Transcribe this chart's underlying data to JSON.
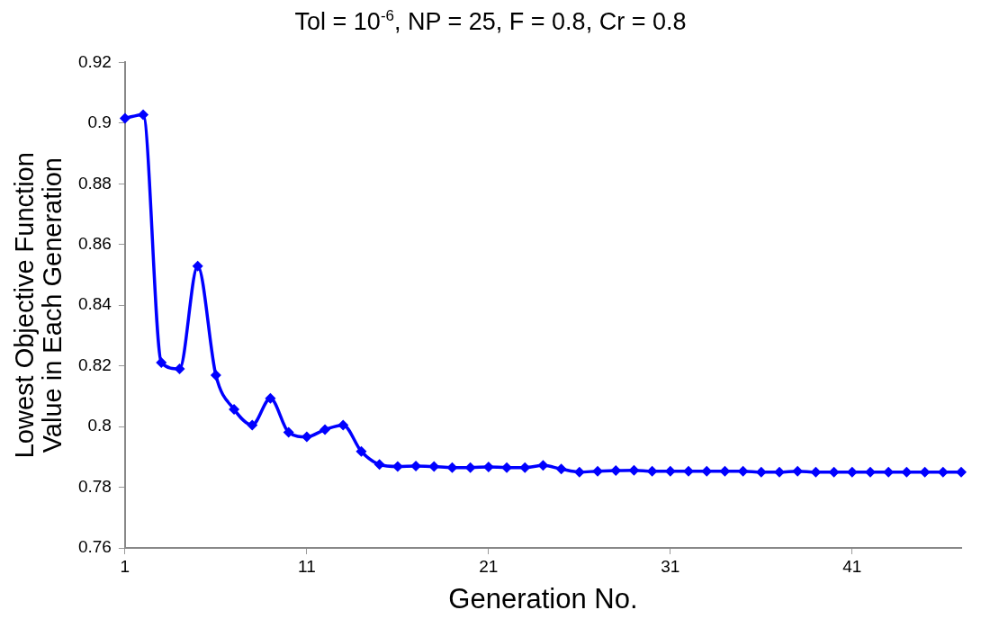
{
  "chart_data": {
    "type": "line",
    "title": "Tol = 10$^{-6}$, NP = 25, F = 0.8, Cr = 0.8",
    "xlabel": "Generation No.",
    "ylabel": "Lowest Objective Function Value in Each Generation",
    "x": [
      1,
      2,
      3,
      4,
      5,
      6,
      7,
      8,
      9,
      10,
      11,
      12,
      13,
      14,
      15,
      16,
      17,
      18,
      19,
      20,
      21,
      22,
      23,
      24,
      25,
      26,
      27,
      28,
      29,
      30,
      31,
      32,
      33,
      34,
      35,
      36,
      37,
      38,
      39,
      40,
      41,
      42,
      43,
      44,
      45,
      46,
      47
    ],
    "series": [
      {
        "color": "#0000ff",
        "values": [
          0.9016,
          0.9028,
          0.8211,
          0.819,
          0.8529,
          0.8169,
          0.8057,
          0.8005,
          0.8093,
          0.7981,
          0.7966,
          0.799,
          0.8005,
          0.7918,
          0.7875,
          0.7868,
          0.787,
          0.7868,
          0.7865,
          0.7865,
          0.7867,
          0.7865,
          0.7865,
          0.7872,
          0.786,
          0.785,
          0.7853,
          0.7855,
          0.7856,
          0.7853,
          0.7853,
          0.7853,
          0.7853,
          0.7853,
          0.7853,
          0.785,
          0.785,
          0.7853,
          0.785,
          0.785,
          0.785,
          0.785,
          0.785,
          0.785,
          0.785,
          0.785,
          0.785
        ]
      }
    ],
    "xlim": [
      1,
      47
    ],
    "xticks": [
      1,
      11,
      21,
      31,
      41
    ],
    "ylim": [
      0.76,
      0.92
    ],
    "yticks": [
      0.76,
      0.78,
      0.8,
      0.82,
      0.84,
      0.86,
      0.88,
      0.9,
      0.92
    ],
    "grid": false,
    "legend": false,
    "marker": "diamond",
    "line_style": "solid"
  }
}
